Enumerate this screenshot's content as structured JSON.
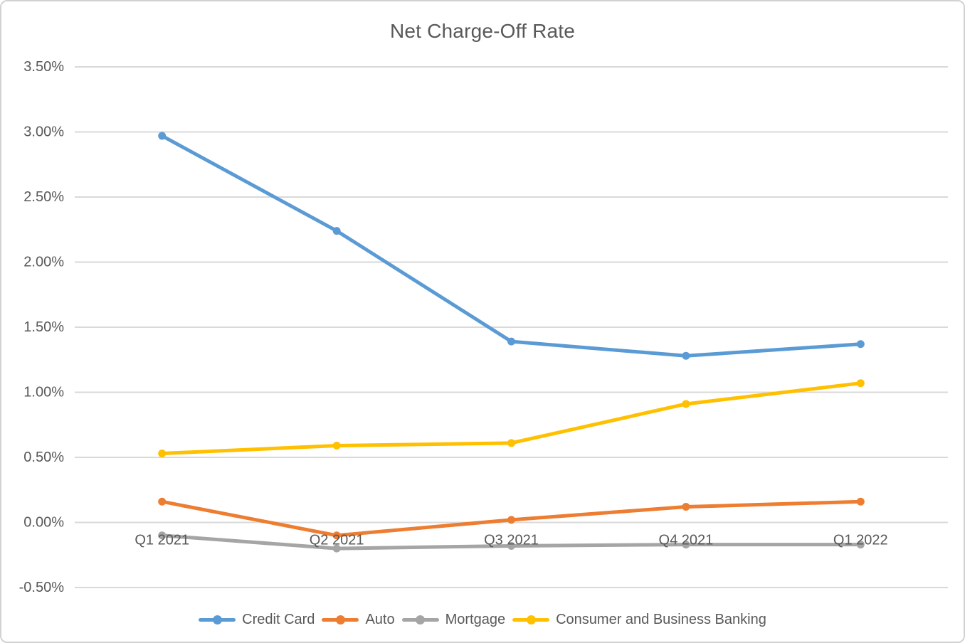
{
  "theme": {
    "background": "#ffffff",
    "frame_border_color": "#d2d2d2",
    "grid_color": "#d9d9d9",
    "text_color": "#595959"
  },
  "chart_data": {
    "type": "line",
    "title": "Net Charge-Off Rate",
    "categories": [
      "Q1 2021",
      "Q2 2021",
      "Q3 2021",
      "Q4 2021",
      "Q1 2022"
    ],
    "series": [
      {
        "name": "Credit Card",
        "color": "#5B9BD5",
        "values": [
          2.97,
          2.24,
          1.39,
          1.28,
          1.37
        ]
      },
      {
        "name": "Auto",
        "color": "#ED7D31",
        "values": [
          0.16,
          -0.1,
          0.02,
          0.12,
          0.16
        ]
      },
      {
        "name": "Mortgage",
        "color": "#A5A5A5",
        "values": [
          -0.1,
          -0.2,
          -0.18,
          -0.17,
          -0.17
        ]
      },
      {
        "name": "Consumer and Business Banking",
        "color": "#FFC000",
        "values": [
          0.53,
          0.59,
          0.61,
          0.91,
          1.07
        ]
      }
    ],
    "ylim": [
      -0.5,
      3.5
    ],
    "y_tick_step": 0.5,
    "y_tick_labels": [
      "3.50%",
      "3.00%",
      "2.50%",
      "2.00%",
      "1.50%",
      "1.00%",
      "0.50%",
      "0.00%",
      "-0.50%"
    ],
    "grid": "horizontal",
    "legend_position": "bottom",
    "marker": "circle",
    "line_width": 5,
    "marker_radius": 5.5
  }
}
